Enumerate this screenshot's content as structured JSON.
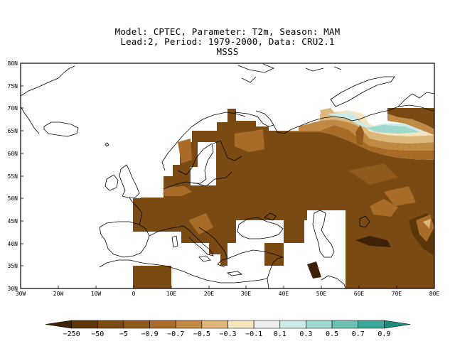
{
  "title": {
    "line1": "Model: CPTEC, Parameter: T2m, Season: MAM",
    "line2": "Lead:2, Period: 1979-2000, Data: CRU2.1",
    "line3": "MSSS"
  },
  "map": {
    "lon_range": [
      -30,
      80
    ],
    "lat_range": [
      30,
      80
    ],
    "x_ticks": [
      "30W",
      "20W",
      "10W",
      "0",
      "10E",
      "20E",
      "30E",
      "40E",
      "50E",
      "60E",
      "70E",
      "80E"
    ],
    "y_ticks": [
      "30N",
      "35N",
      "40N",
      "45N",
      "50N",
      "55N",
      "60N",
      "65N",
      "70N",
      "75N",
      "80N"
    ]
  },
  "colorbar": {
    "labels": [
      "-250",
      "-50",
      "-5",
      "-0.9",
      "-0.7",
      "-0.5",
      "-0.3",
      "-0.1",
      "0.1",
      "0.3",
      "0.5",
      "0.7",
      "0.9"
    ],
    "colors": [
      "#3d2205",
      "#5c3608",
      "#7a4a12",
      "#8f5a1c",
      "#a86c28",
      "#c08a45",
      "#ddb77a",
      "#f5e4c0",
      "#eeeeee",
      "#cdeae4",
      "#9fd8cc",
      "#6cc2b2",
      "#3aa898",
      "#1b8c7d"
    ]
  }
}
